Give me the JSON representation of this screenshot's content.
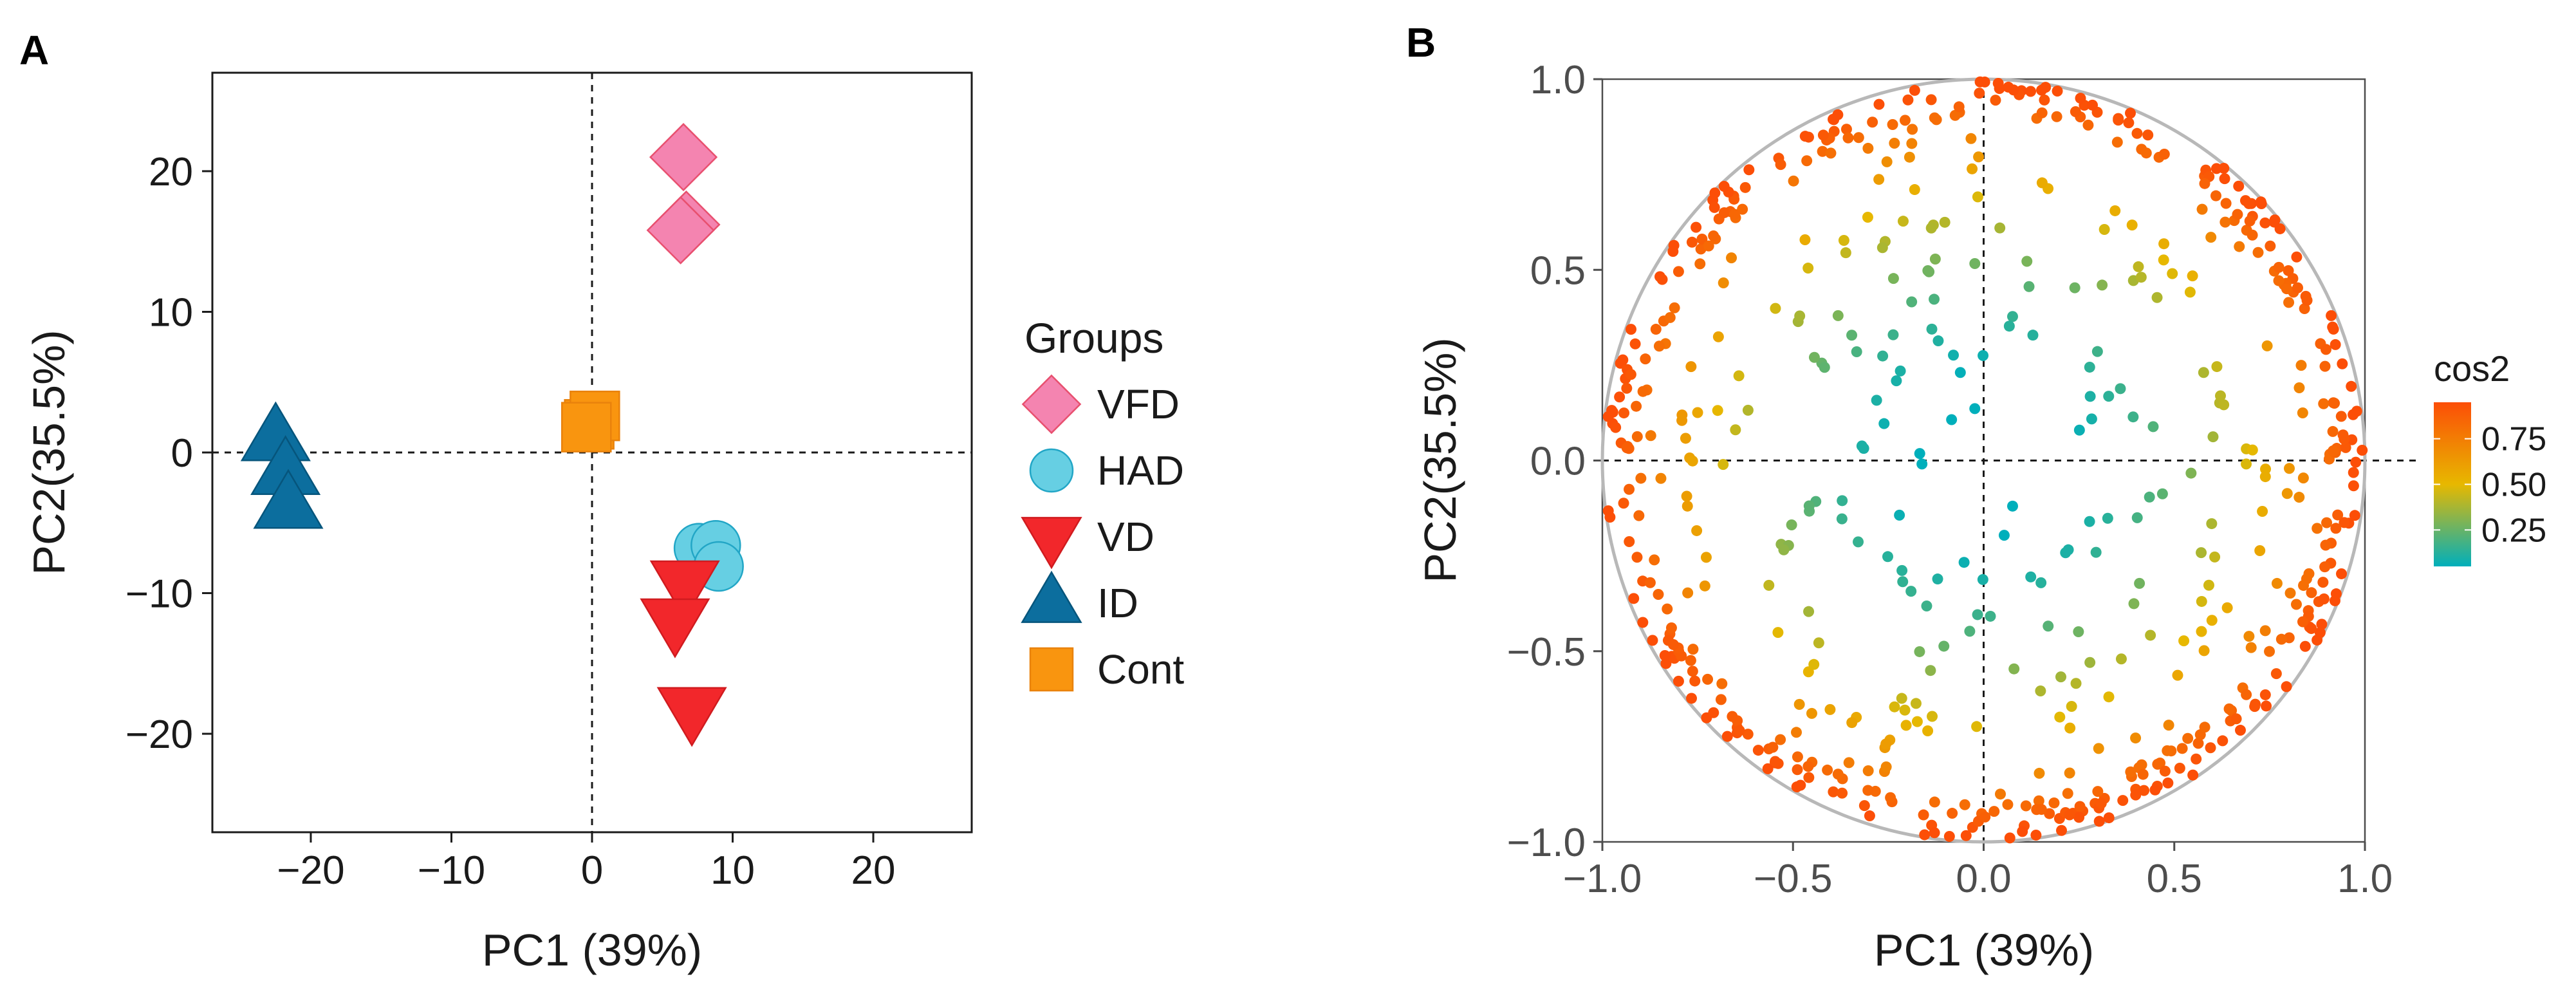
{
  "chart_data": [
    {
      "panel": "A",
      "type": "scatter",
      "title": "",
      "xlabel": "PC1 (39%)",
      "ylabel": "PC2(35.5%)",
      "xlim": [
        -27,
        27
      ],
      "ylim": [
        -27,
        27
      ],
      "xticks": [
        -20,
        -10,
        0,
        10,
        20
      ],
      "yticks": [
        -20,
        -10,
        0,
        10,
        20
      ],
      "xtick_labels": [
        "−20",
        "−10",
        "0",
        "10",
        "20"
      ],
      "ytick_labels": [
        "−20",
        "−10",
        "0",
        "10",
        "20"
      ],
      "reference_lines": {
        "x": 0,
        "y": 0
      },
      "grid": false,
      "legend_title": "Groups",
      "legend_position": "right",
      "series": [
        {
          "name": "VFD",
          "marker": "diamond",
          "color": "#F484B0",
          "edge": "#E8506F",
          "points": [
            [
              6.5,
              21
            ],
            [
              6.7,
              16.2
            ],
            [
              6.3,
              15.8
            ]
          ]
        },
        {
          "name": "HAD",
          "marker": "circle",
          "color": "#66CFE3",
          "edge": "#22A6C6",
          "points": [
            [
              7.6,
              -6.8
            ],
            [
              8.8,
              -6.6
            ],
            [
              9.0,
              -8.1
            ]
          ]
        },
        {
          "name": "VD",
          "marker": "triangle-down",
          "color": "#F2272B",
          "edge": "#D01B1F",
          "points": [
            [
              6.6,
              -9.3
            ],
            [
              5.9,
              -12.0
            ],
            [
              7.1,
              -18.3
            ]
          ]
        },
        {
          "name": "ID",
          "marker": "triangle-up",
          "color": "#0C6E9E",
          "edge": "#06557C",
          "points": [
            [
              -22.5,
              1.0
            ],
            [
              -21.8,
              -1.4
            ],
            [
              -21.6,
              -3.8
            ]
          ]
        },
        {
          "name": "Cont",
          "marker": "square",
          "color": "#F9950F",
          "edge": "#E9820C",
          "points": [
            [
              -0.2,
              2.0
            ],
            [
              0.2,
              2.6
            ],
            [
              -0.4,
              1.8
            ]
          ]
        }
      ]
    },
    {
      "panel": "B",
      "type": "scatter",
      "title": "",
      "xlabel": "PC1 (39%)",
      "ylabel": "PC2(35.5%)",
      "xlim": [
        -1.0,
        1.0
      ],
      "ylim": [
        -1.0,
        1.0
      ],
      "xticks": [
        -1.0,
        -0.5,
        0.0,
        0.5,
        1.0
      ],
      "yticks": [
        -1.0,
        -0.5,
        0.0,
        0.5,
        1.0
      ],
      "xtick_labels": [
        "−1.0",
        "−0.5",
        "0.0",
        "0.5",
        "1.0"
      ],
      "ytick_labels": [
        "−1.0",
        "−0.5",
        "0.0",
        "0.5",
        "1.0"
      ],
      "reference_lines": {
        "x": 0,
        "y": 0
      },
      "unit_circle": true,
      "grid": false,
      "color_by": "cos2",
      "colorbar": {
        "title": "cos2",
        "ticks": [
          0.25,
          0.5,
          0.75
        ],
        "tick_labels": [
          "0.25",
          "0.50",
          "0.75"
        ],
        "range": [
          0.05,
          0.95
        ],
        "colors": [
          "#00AFBB",
          "#E7B800",
          "#FC4E07"
        ],
        "position": "right"
      },
      "n_points_estimate": 620,
      "note": "Variable loadings; dense ring of points near the unit circle, sparse interior"
    }
  ],
  "panels": {
    "a_label": "A",
    "b_label": "B"
  }
}
